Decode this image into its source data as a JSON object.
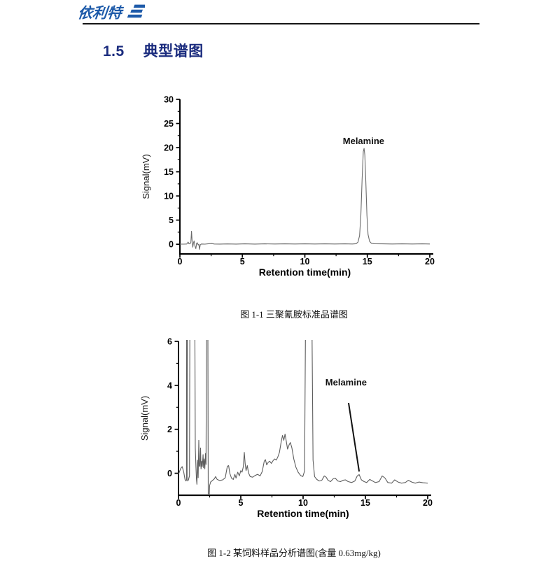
{
  "colors": {
    "logo_blue": "#1d5aa9",
    "heading_navy": "#1b2c7e",
    "rule_black": "#151515"
  },
  "header": {
    "logo_text": "依利特"
  },
  "section": {
    "number": "1.5",
    "title": "典型谱图"
  },
  "chart_data": [
    {
      "type": "line",
      "title": "图 1-1  三聚氰胺标准品谱图",
      "xlabel": "Retention time(min)",
      "ylabel": "Signal(mV)",
      "xlim": [
        0,
        20
      ],
      "ylim": [
        -2,
        30
      ],
      "xticks": [
        0,
        5,
        10,
        15,
        20
      ],
      "yticks": [
        0,
        5,
        10,
        15,
        20,
        25,
        30
      ],
      "x_minor_step": 2.5,
      "y_minor_step": 2.5,
      "grid": false,
      "legend": false,
      "line_color": "#6b6b6b",
      "annotation": {
        "text": "Melamine",
        "x": 14.7,
        "y": 20.7,
        "leader": null
      },
      "series": [
        {
          "name": "melamine standard",
          "points": [
            [
              0,
              0.02
            ],
            [
              0.3,
              0.03
            ],
            [
              0.55,
              0.06
            ],
            [
              0.66,
              0.45
            ],
            [
              0.72,
              0.12
            ],
            [
              0.8,
              0.08
            ],
            [
              0.88,
              0.4
            ],
            [
              0.93,
              2.7
            ],
            [
              0.98,
              0.6
            ],
            [
              1.03,
              -0.6
            ],
            [
              1.08,
              0.25
            ],
            [
              1.14,
              0.7
            ],
            [
              1.2,
              -0.3
            ],
            [
              1.28,
              -0.9
            ],
            [
              1.34,
              0.25
            ],
            [
              1.4,
              0.3
            ],
            [
              1.46,
              -0.15
            ],
            [
              1.52,
              0.0
            ],
            [
              1.57,
              -1.05
            ],
            [
              1.63,
              -0.1
            ],
            [
              1.72,
              0.05
            ],
            [
              2.0,
              0.02
            ],
            [
              2.3,
              0.12
            ],
            [
              2.55,
              0.15
            ],
            [
              2.75,
              0.05
            ],
            [
              3.2,
              0.04
            ],
            [
              3.8,
              0.07
            ],
            [
              4.5,
              0.04
            ],
            [
              5.2,
              0.08
            ],
            [
              6.0,
              0.04
            ],
            [
              6.8,
              0.09
            ],
            [
              7.6,
              0.05
            ],
            [
              8.4,
              0.08
            ],
            [
              9.2,
              0.05
            ],
            [
              10.0,
              0.09
            ],
            [
              10.8,
              0.05
            ],
            [
              11.6,
              0.08
            ],
            [
              12.4,
              0.05
            ],
            [
              13.2,
              0.08
            ],
            [
              13.8,
              0.06
            ],
            [
              14.1,
              0.12
            ],
            [
              14.25,
              0.45
            ],
            [
              14.38,
              1.8
            ],
            [
              14.48,
              6.0
            ],
            [
              14.58,
              13.5
            ],
            [
              14.68,
              19.2
            ],
            [
              14.74,
              19.85
            ],
            [
              14.8,
              18.5
            ],
            [
              14.88,
              13.0
            ],
            [
              14.97,
              6.0
            ],
            [
              15.06,
              2.0
            ],
            [
              15.18,
              0.6
            ],
            [
              15.32,
              0.2
            ],
            [
              15.55,
              0.12
            ],
            [
              16.2,
              0.08
            ],
            [
              17.0,
              0.05
            ],
            [
              17.8,
              0.09
            ],
            [
              18.6,
              0.05
            ],
            [
              19.4,
              0.08
            ],
            [
              20,
              0.05
            ]
          ]
        }
      ]
    },
    {
      "type": "line",
      "title": "图 1-2  某饲料样品分析谱图(含量 0.63mg/kg)",
      "xlabel": "Retention time(min)",
      "ylabel": "Signal(mV)",
      "xlim": [
        0,
        20
      ],
      "ylim": [
        -1,
        6
      ],
      "xticks": [
        0,
        5,
        10,
        15,
        20
      ],
      "yticks": [
        0,
        2,
        4,
        6
      ],
      "x_minor_step": 2.5,
      "y_minor_step": 1,
      "grid": false,
      "legend": false,
      "line_color": "#5e5e5e",
      "annotation": {
        "text": "Melamine",
        "x": 13.45,
        "y": 4.0,
        "leader": [
          13.65,
          3.2,
          14.5,
          0.08
        ]
      },
      "series": [
        {
          "name": "feed sample",
          "points": [
            [
              0,
              -0.05
            ],
            [
              0.18,
              0.22
            ],
            [
              0.3,
              0.3
            ],
            [
              0.42,
              0.05
            ],
            [
              0.52,
              -0.28
            ],
            [
              0.6,
              -0.35
            ],
            [
              0.64,
              -0.3
            ],
            [
              0.66,
              9
            ],
            [
              0.7,
              9
            ],
            [
              0.73,
              -0.35
            ],
            [
              0.8,
              -0.3
            ],
            [
              0.88,
              -0.12
            ],
            [
              0.92,
              9
            ],
            [
              1.3,
              9
            ],
            [
              1.35,
              1.15
            ],
            [
              1.4,
              0.3
            ],
            [
              1.44,
              -0.25
            ],
            [
              1.48,
              -0.5
            ],
            [
              1.53,
              0.6
            ],
            [
              1.58,
              -0.2
            ],
            [
              1.63,
              1.5
            ],
            [
              1.67,
              0.35
            ],
            [
              1.72,
              0.3
            ],
            [
              1.77,
              1.15
            ],
            [
              1.81,
              0.2
            ],
            [
              1.87,
              0.55
            ],
            [
              1.91,
              0.3
            ],
            [
              1.97,
              0.85
            ],
            [
              2.01,
              0.25
            ],
            [
              2.07,
              0.65
            ],
            [
              2.11,
              0.2
            ],
            [
              2.17,
              0.9
            ],
            [
              2.21,
              0.4
            ],
            [
              2.27,
              9
            ],
            [
              2.35,
              9
            ],
            [
              2.39,
              -1.3
            ],
            [
              2.45,
              -1.3
            ],
            [
              2.5,
              -0.55
            ],
            [
              2.58,
              -0.4
            ],
            [
              2.72,
              -0.33
            ],
            [
              2.88,
              -0.25
            ],
            [
              2.98,
              -0.15
            ],
            [
              3.1,
              -0.28
            ],
            [
              3.3,
              -0.33
            ],
            [
              3.55,
              -0.3
            ],
            [
              3.75,
              -0.2
            ],
            [
              3.92,
              0.32
            ],
            [
              4.02,
              0.35
            ],
            [
              4.12,
              0.0
            ],
            [
              4.25,
              -0.22
            ],
            [
              4.4,
              -0.28
            ],
            [
              4.52,
              -0.05
            ],
            [
              4.62,
              -0.22
            ],
            [
              4.75,
              0.05
            ],
            [
              4.88,
              -0.12
            ],
            [
              5.0,
              0.12
            ],
            [
              5.1,
              0.05
            ],
            [
              5.2,
              0.3
            ],
            [
              5.28,
              0.95
            ],
            [
              5.35,
              0.45
            ],
            [
              5.42,
              0.12
            ],
            [
              5.52,
              0.35
            ],
            [
              5.62,
              0.02
            ],
            [
              5.75,
              -0.15
            ],
            [
              5.95,
              -0.18
            ],
            [
              6.15,
              -0.1
            ],
            [
              6.35,
              -0.05
            ],
            [
              6.55,
              -0.12
            ],
            [
              6.72,
              0.08
            ],
            [
              6.88,
              0.55
            ],
            [
              6.98,
              0.62
            ],
            [
              7.08,
              0.38
            ],
            [
              7.2,
              0.5
            ],
            [
              7.32,
              0.55
            ],
            [
              7.45,
              0.45
            ],
            [
              7.6,
              0.58
            ],
            [
              7.72,
              0.65
            ],
            [
              7.85,
              0.6
            ],
            [
              7.98,
              0.75
            ],
            [
              8.1,
              0.95
            ],
            [
              8.25,
              1.45
            ],
            [
              8.35,
              1.72
            ],
            [
              8.45,
              1.5
            ],
            [
              8.55,
              1.78
            ],
            [
              8.65,
              1.45
            ],
            [
              8.75,
              1.1
            ],
            [
              8.88,
              1.3
            ],
            [
              8.98,
              1.4
            ],
            [
              9.1,
              1.15
            ],
            [
              9.25,
              0.65
            ],
            [
              9.42,
              0.28
            ],
            [
              9.6,
              0.05
            ],
            [
              9.8,
              -0.1
            ],
            [
              9.98,
              -0.15
            ],
            [
              10.12,
              0.1
            ],
            [
              10.22,
              9
            ],
            [
              10.68,
              9
            ],
            [
              10.8,
              0.6
            ],
            [
              10.92,
              -0.15
            ],
            [
              11.1,
              -0.28
            ],
            [
              11.3,
              -0.35
            ],
            [
              11.5,
              -0.32
            ],
            [
              11.7,
              -0.12
            ],
            [
              11.85,
              -0.18
            ],
            [
              12.0,
              -0.32
            ],
            [
              12.2,
              -0.38
            ],
            [
              12.42,
              -0.25
            ],
            [
              12.58,
              -0.22
            ],
            [
              12.78,
              -0.35
            ],
            [
              13.0,
              -0.38
            ],
            [
              13.2,
              -0.32
            ],
            [
              13.4,
              -0.3
            ],
            [
              13.62,
              -0.38
            ],
            [
              13.9,
              -0.42
            ],
            [
              14.15,
              -0.35
            ],
            [
              14.35,
              -0.12
            ],
            [
              14.5,
              -0.06
            ],
            [
              14.68,
              -0.3
            ],
            [
              14.9,
              -0.38
            ],
            [
              15.1,
              -0.42
            ],
            [
              15.35,
              -0.28
            ],
            [
              15.58,
              -0.35
            ],
            [
              15.8,
              -0.42
            ],
            [
              16.1,
              -0.38
            ],
            [
              16.35,
              -0.12
            ],
            [
              16.58,
              -0.22
            ],
            [
              16.8,
              -0.42
            ],
            [
              17.1,
              -0.45
            ],
            [
              17.35,
              -0.3
            ],
            [
              17.62,
              -0.4
            ],
            [
              17.9,
              -0.45
            ],
            [
              18.2,
              -0.42
            ],
            [
              18.45,
              -0.32
            ],
            [
              18.72,
              -0.4
            ],
            [
              19.0,
              -0.45
            ],
            [
              19.3,
              -0.4
            ],
            [
              19.6,
              -0.43
            ],
            [
              20.0,
              -0.45
            ]
          ]
        }
      ]
    }
  ]
}
